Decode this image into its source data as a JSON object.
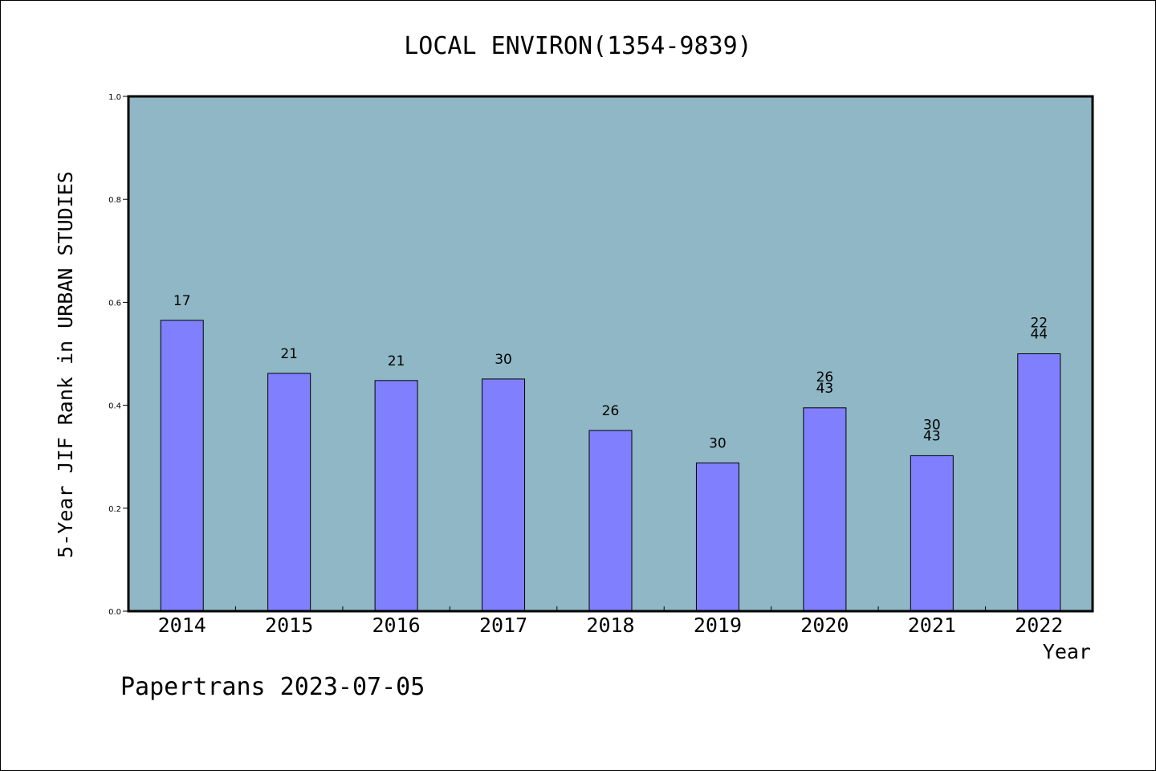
{
  "chart_data": {
    "type": "bar",
    "title": "LOCAL ENVIRON(1354-9839)",
    "xlabel": "Year",
    "ylabel": "5-Year JIF Rank in URBAN STUDIES",
    "ylim": [
      0,
      1.0
    ],
    "yticks": [
      "0.0",
      "0.2",
      "0.4",
      "0.6",
      "0.8",
      "1.0"
    ],
    "categories": [
      "2014",
      "2015",
      "2016",
      "2017",
      "2018",
      "2019",
      "2020",
      "2021",
      "2022"
    ],
    "values": [
      0.565,
      0.462,
      0.448,
      0.451,
      0.351,
      0.288,
      0.395,
      0.302,
      0.5
    ],
    "labels": [
      [
        "17"
      ],
      [
        "21"
      ],
      [
        "21"
      ],
      [
        "30"
      ],
      [
        "26"
      ],
      [
        "30"
      ],
      [
        "26",
        "43"
      ],
      [
        "30",
        "43"
      ],
      [
        "22",
        "44"
      ]
    ],
    "grid": false,
    "colors": {
      "plot_bg": "#8fb7c5",
      "bar": "#8080ff"
    }
  },
  "footer": {
    "text": "Papertrans 2023-07-05"
  }
}
